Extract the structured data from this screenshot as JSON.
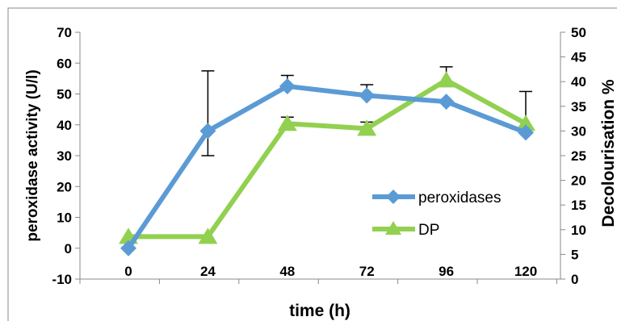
{
  "chart_data": {
    "type": "line",
    "x": [
      0,
      24,
      48,
      72,
      96,
      120
    ],
    "x_tick_labels": [
      "0",
      "24",
      "48",
      "72",
      "96",
      "120"
    ],
    "xlabel": "time (h)",
    "ylabel_left": "peroxidase activity (U/l)",
    "ylabel_right": "Decolourisation %",
    "ylim_left": [
      -10,
      70
    ],
    "yticks_left": [
      "-10",
      "0",
      "10",
      "20",
      "30",
      "40",
      "50",
      "60",
      "70"
    ],
    "ylim_right": [
      0,
      50
    ],
    "yticks_right": [
      "0",
      "5",
      "10",
      "15",
      "20",
      "25",
      "30",
      "35",
      "40",
      "45",
      "50"
    ],
    "grid": false,
    "legend_position": "center-right",
    "series": [
      {
        "name": "peroxidases",
        "axis": "left",
        "marker": "diamond",
        "color": "#5b9bd5",
        "values": [
          0,
          38,
          52.5,
          49.5,
          47.5,
          37.5
        ],
        "error_plus": [
          0,
          19.5,
          3.5,
          3.5,
          0,
          0
        ],
        "error_minus": [
          0,
          8,
          0,
          0,
          0,
          0
        ]
      },
      {
        "name": "DP",
        "axis": "right",
        "marker": "triangle",
        "color": "#92d050",
        "values": [
          8.6,
          8.6,
          31.5,
          30.5,
          40.3,
          31.5
        ],
        "error_plus": [
          0,
          0,
          1.3,
          1.3,
          2.7,
          6.5
        ],
        "error_minus": [
          0,
          0,
          0,
          0,
          0,
          0
        ]
      }
    ]
  }
}
